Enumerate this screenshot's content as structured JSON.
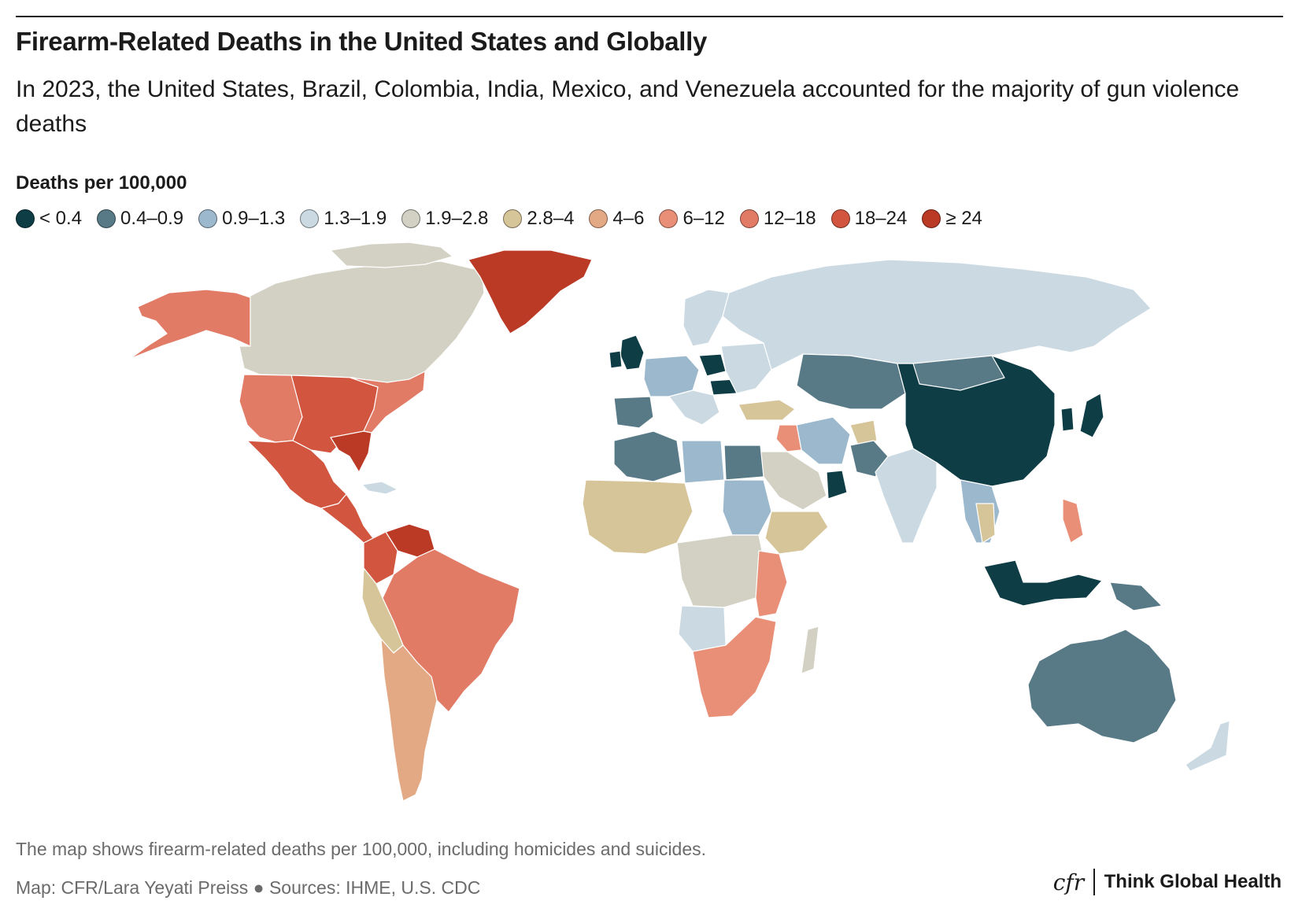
{
  "header": {
    "title": "Firearm-Related Deaths in the United States and Globally",
    "subtitle": "In 2023, the United States, Brazil, Colombia, India, Mexico, and Venezuela accounted for the majority of gun violence deaths"
  },
  "legend": {
    "title": "Deaths per 100,000",
    "items": [
      {
        "label": "< 0.4",
        "color": "#0e3d46"
      },
      {
        "label": "0.4–0.9",
        "color": "#587a86"
      },
      {
        "label": "0.9–1.3",
        "color": "#9cb8cc"
      },
      {
        "label": "1.3–1.9",
        "color": "#cbd9e2"
      },
      {
        "label": "1.9–2.8",
        "color": "#d2d1c4"
      },
      {
        "label": "2.8–4",
        "color": "#d7c59a"
      },
      {
        "label": "4–6",
        "color": "#e2a984"
      },
      {
        "label": "6–12",
        "color": "#e98f78"
      },
      {
        "label": "12–18",
        "color": "#e27b66"
      },
      {
        "label": "18–24",
        "color": "#d2563f"
      },
      {
        "label": "≥ 24",
        "color": "#bb3a26"
      }
    ]
  },
  "footer": {
    "note": "The map shows firearm-related deaths per 100,000, including homicides and suicides.",
    "credit": "Map: CFR/Lara Yeyati Preiss ● Sources: IHME, U.S. CDC",
    "brand_logo": "cfr",
    "brand_name": "Think Global Health"
  }
}
